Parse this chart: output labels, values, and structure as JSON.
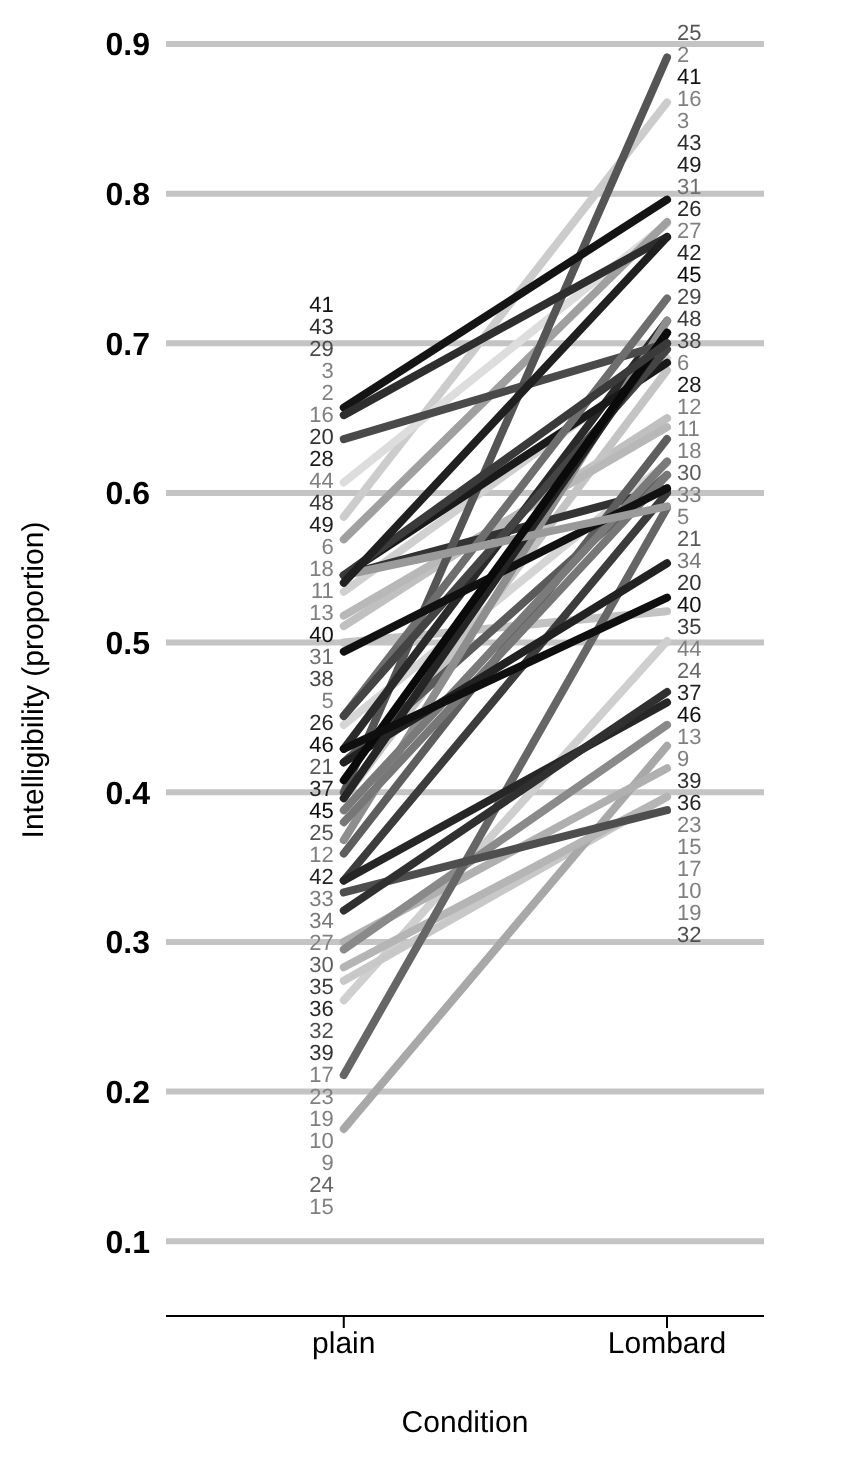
{
  "chart_data": {
    "type": "line",
    "xlabel": "Condition",
    "ylabel": "Intelligibility (proportion)",
    "categories": [
      "plain",
      "Lombard"
    ],
    "ylim": [
      0.05,
      0.9
    ],
    "yticks": [
      0.1,
      0.2,
      0.3,
      0.4,
      0.5,
      0.6,
      0.7,
      0.8,
      0.9
    ],
    "grid": "y",
    "legend": false,
    "marker": "none",
    "line_style": "solid",
    "series": [
      {
        "name": "2",
        "color": "#cccccc",
        "values": [
          0.584,
          0.861
        ]
      },
      {
        "name": "3",
        "color": "#dddddd",
        "values": [
          0.607,
          0.78
        ]
      },
      {
        "name": "5",
        "color": "#d5d5d5",
        "values": [
          0.445,
          0.62
        ]
      },
      {
        "name": "6",
        "color": "#d0d0d0",
        "values": [
          0.534,
          0.69
        ]
      },
      {
        "name": "9",
        "color": "#cfcfcf",
        "values": [
          0.261,
          0.501
        ]
      },
      {
        "name": "10",
        "color": "#c8c8c8",
        "values": [
          0.274,
          0.397
        ]
      },
      {
        "name": "11",
        "color": "#c0c0c0",
        "values": [
          0.511,
          0.65
        ]
      },
      {
        "name": "12",
        "color": "#c4c4c4",
        "values": [
          0.396,
          0.682
        ]
      },
      {
        "name": "13",
        "color": "#c2c2c2",
        "values": [
          0.5,
          0.521
        ]
      },
      {
        "name": "15",
        "color": "#a8a8a8",
        "values": [
          0.175,
          0.431
        ]
      },
      {
        "name": "16",
        "color": "#a0a0a0",
        "values": [
          0.569,
          0.781
        ]
      },
      {
        "name": "17",
        "color": "#b0b0b0",
        "values": [
          0.3,
          0.416
        ]
      },
      {
        "name": "18",
        "color": "#b8b8b8",
        "values": [
          0.518,
          0.644
        ]
      },
      {
        "name": "19",
        "color": "#b5b5b5",
        "values": [
          0.283,
          0.397
        ]
      },
      {
        "name": "20",
        "color": "#333333",
        "values": [
          0.545,
          0.603
        ]
      },
      {
        "name": "21",
        "color": "#5a5a5a",
        "values": [
          0.42,
          0.612
        ]
      },
      {
        "name": "23",
        "color": "#8a8a8a",
        "values": [
          0.295,
          0.445
        ]
      },
      {
        "name": "24",
        "color": "#666666",
        "values": [
          0.211,
          0.59
        ]
      },
      {
        "name": "25",
        "color": "#555555",
        "values": [
          0.4,
          0.891
        ]
      },
      {
        "name": "26",
        "color": "#2a2a2a",
        "values": [
          0.429,
          0.715
        ]
      },
      {
        "name": "27",
        "color": "#8e8e8e",
        "values": [
          0.368,
          0.715
        ]
      },
      {
        "name": "28",
        "color": "#1a1a1a",
        "values": [
          0.545,
          0.687
        ]
      },
      {
        "name": "29",
        "color": "#4a4a4a",
        "values": [
          0.636,
          0.7
        ]
      },
      {
        "name": "30",
        "color": "#5e5e5e",
        "values": [
          0.359,
          0.636
        ]
      },
      {
        "name": "31",
        "color": "#6e6e6e",
        "values": [
          0.451,
          0.73
        ]
      },
      {
        "name": "32",
        "color": "#4e4e4e",
        "values": [
          0.333,
          0.388
        ]
      },
      {
        "name": "33",
        "color": "#7a7a7a",
        "values": [
          0.388,
          0.621
        ]
      },
      {
        "name": "34",
        "color": "#777777",
        "values": [
          0.38,
          0.612
        ]
      },
      {
        "name": "35",
        "color": "#3c3c3c",
        "values": [
          0.341,
          0.6
        ]
      },
      {
        "name": "36",
        "color": "#262626",
        "values": [
          0.341,
          0.46
        ]
      },
      {
        "name": "37",
        "color": "#222222",
        "values": [
          0.42,
          0.553
        ]
      },
      {
        "name": "38",
        "color": "#444444",
        "values": [
          0.451,
          0.696
        ]
      },
      {
        "name": "39",
        "color": "#303030",
        "values": [
          0.321,
          0.467
        ]
      },
      {
        "name": "40",
        "color": "#111111",
        "values": [
          0.494,
          0.603
        ]
      },
      {
        "name": "41",
        "color": "#141414",
        "values": [
          0.657,
          0.796
        ]
      },
      {
        "name": "42",
        "color": "#252525",
        "values": [
          0.396,
          0.707
        ]
      },
      {
        "name": "43",
        "color": "#2e2e2e",
        "values": [
          0.652,
          0.771
        ]
      },
      {
        "name": "44",
        "color": "#9a9a9a",
        "values": [
          0.545,
          0.591
        ]
      },
      {
        "name": "45",
        "color": "#0a0a0a",
        "values": [
          0.408,
          0.707
        ]
      },
      {
        "name": "46",
        "color": "#0f0f0f",
        "values": [
          0.429,
          0.53
        ]
      },
      {
        "name": "48",
        "color": "#3a3a3a",
        "values": [
          0.545,
          0.7
        ]
      },
      {
        "name": "49",
        "color": "#202020",
        "values": [
          0.54,
          0.771
        ]
      }
    ]
  }
}
